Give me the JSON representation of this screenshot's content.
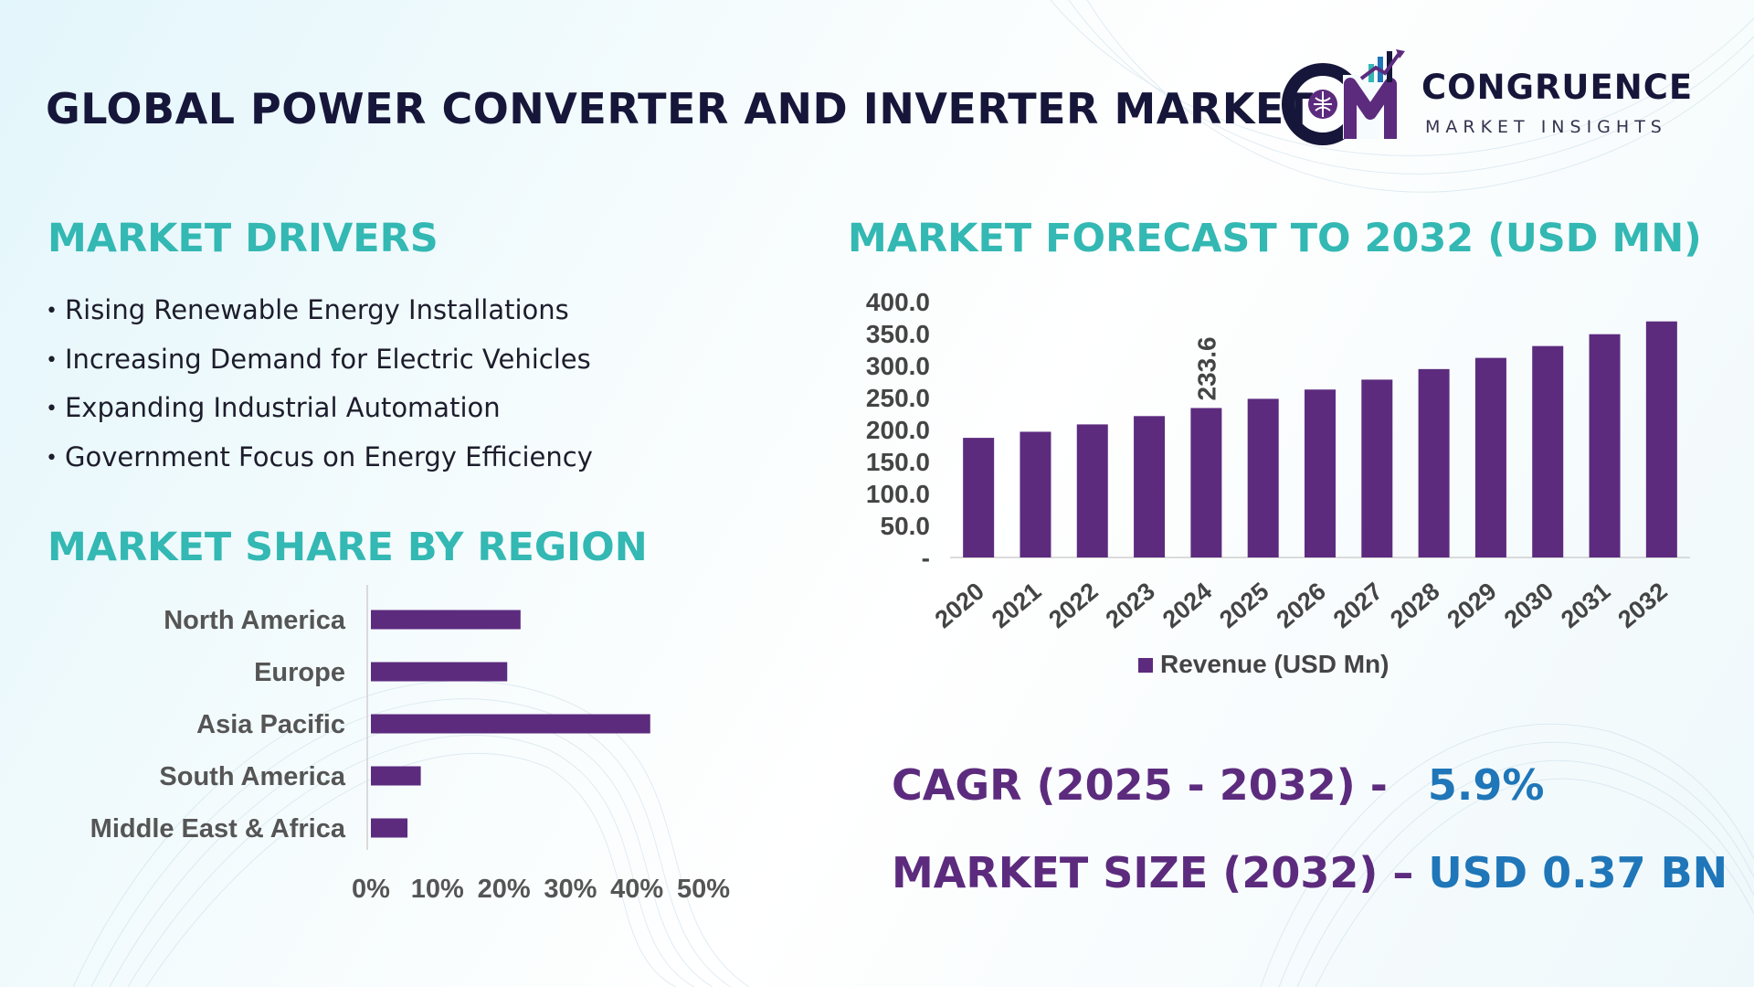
{
  "header": {
    "title": "GLOBAL POWER CONVERTER AND INVERTER MARKET",
    "logo_name": "CONGRUENCE",
    "logo_tagline": "MARKET INSIGHTS"
  },
  "drivers": {
    "title": "MARKET DRIVERS",
    "items": [
      "Rising Renewable Energy Installations",
      "Increasing Demand for Electric Vehicles",
      "Expanding Industrial Automation",
      "Government Focus on Energy Efficiency"
    ]
  },
  "region": {
    "title": "MARKET SHARE BY REGION"
  },
  "forecast": {
    "title": "MARKET FORECAST TO 2032 (USD MN)"
  },
  "kpis": {
    "cagr_label": "CAGR (2025 - 2032) -",
    "cagr_value": "5.9%",
    "size_label": "MARKET SIZE (2032) –",
    "size_value": "USD 0.37 BN"
  },
  "colors": {
    "bar": "#5c2b7e",
    "accent_teal": "#33b8b3",
    "accent_blue": "#1f76b8",
    "title_dark": "#16163a"
  },
  "chart_data": [
    {
      "type": "bar",
      "orientation": "vertical",
      "categories": [
        "2020",
        "2021",
        "2022",
        "2023",
        "2024",
        "2025",
        "2026",
        "2027",
        "2028",
        "2029",
        "2030",
        "2031",
        "2032"
      ],
      "series": [
        {
          "name": "Revenue (USD Mn)",
          "values": [
            187.0,
            196.5,
            208.0,
            221.0,
            233.6,
            248.0,
            262.5,
            278.0,
            294.5,
            312.0,
            330.5,
            349.0,
            369.0
          ]
        }
      ],
      "data_labels": [
        {
          "category": "2024",
          "text": "233.6"
        }
      ],
      "ylim": [
        0,
        400
      ],
      "yticks": [
        "-",
        "50.0",
        "100.0",
        "150.0",
        "200.0",
        "250.0",
        "300.0",
        "350.0",
        "400.0"
      ],
      "legend": "bottom"
    },
    {
      "type": "bar",
      "orientation": "horizontal",
      "categories": [
        "North America",
        "Europe",
        "Asia Pacific",
        "South America",
        "Middle East & Africa"
      ],
      "values": [
        22.5,
        20.5,
        42.0,
        7.5,
        5.5
      ],
      "xlim": [
        0,
        50
      ],
      "xticks": [
        "0%",
        "10%",
        "20%",
        "30%",
        "40%",
        "50%"
      ]
    }
  ]
}
